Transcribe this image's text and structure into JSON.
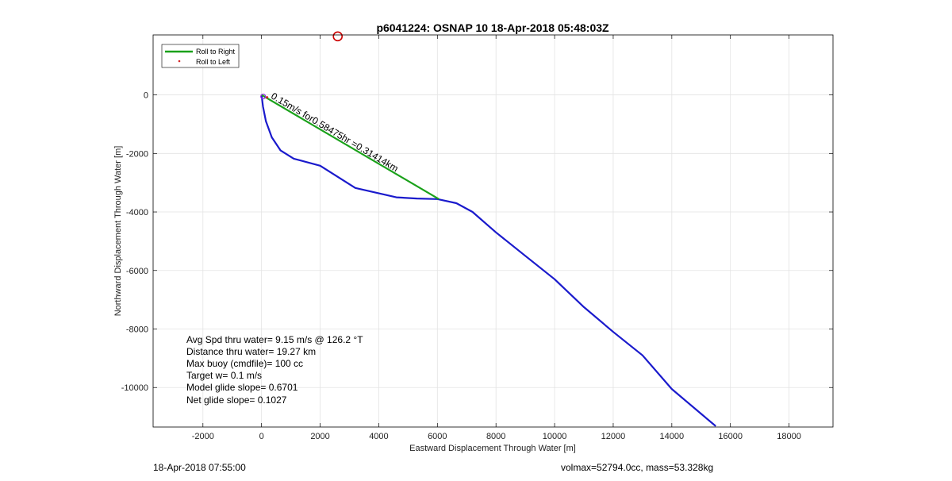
{
  "chart_data": {
    "type": "line",
    "title": "p6041224: OSNAP 10 18-Apr-2018 05:48:03Z",
    "xlabel": "Eastward Displacement Through Water [m]",
    "ylabel": "Northward Displacement Through Water [m]",
    "xlim": [
      -3700,
      19500
    ],
    "ylim": [
      -11350,
      2050
    ],
    "xticks": [
      -2000,
      0,
      2000,
      4000,
      6000,
      8000,
      10000,
      12000,
      14000,
      16000,
      18000
    ],
    "yticks": [
      0,
      -2000,
      -4000,
      -6000,
      -8000,
      -10000
    ],
    "xtick_labels": [
      "-2000",
      "0",
      "2000",
      "4000",
      "6000",
      "8000",
      "10000",
      "12000",
      "14000",
      "16000",
      "18000"
    ],
    "ytick_labels": [
      "0",
      "-2000",
      "-4000",
      "-6000",
      "-8000",
      "-10000"
    ],
    "grid": true,
    "legend_position": "top-left",
    "legend": [
      "Roll to Right",
      "Roll to Left"
    ],
    "series": [
      {
        "name": "Roll to Right",
        "color": "#1aa11a",
        "x": [
          0,
          6050
        ],
        "y": [
          0,
          -3560
        ]
      },
      {
        "name": "Roll to Left",
        "color": "#d62728",
        "x": [],
        "y": []
      },
      {
        "color": "#1a1acc",
        "x": [
          0,
          50,
          150,
          350,
          650,
          1100,
          2000,
          3200,
          4600,
          5300,
          6000,
          6650,
          7200,
          8000,
          9000,
          10000,
          11000,
          12000,
          13000,
          14000,
          15000,
          15500
        ],
        "y": [
          0,
          -400,
          -900,
          -1450,
          -1900,
          -2180,
          -2420,
          -3180,
          -3500,
          -3540,
          -3560,
          -3700,
          -4000,
          -4700,
          -5500,
          -6300,
          -7250,
          -8100,
          -8900,
          -10050,
          -10900,
          -11320
        ]
      }
    ],
    "marker": {
      "x": 2600,
      "y": 2000,
      "color": "#cc0000"
    },
    "annotation": {
      "text": "0.15m/s for0.58475hr =0.31414km",
      "x": 300,
      "y": -100,
      "angle": 30.6
    },
    "stats": [
      "Avg Spd thru water=  9.15 m/s @ 126.2 °T",
      "Distance thru water= 19.27 km",
      "Max buoy (cmdfile)= 100 cc",
      "Target w= 0.1 m/s",
      "Model glide slope= 0.6701",
      "Net glide slope= 0.1027"
    ]
  },
  "footer": {
    "left": "18-Apr-2018 07:55:00",
    "right": "volmax=52794.0cc, mass=53.328kg"
  }
}
